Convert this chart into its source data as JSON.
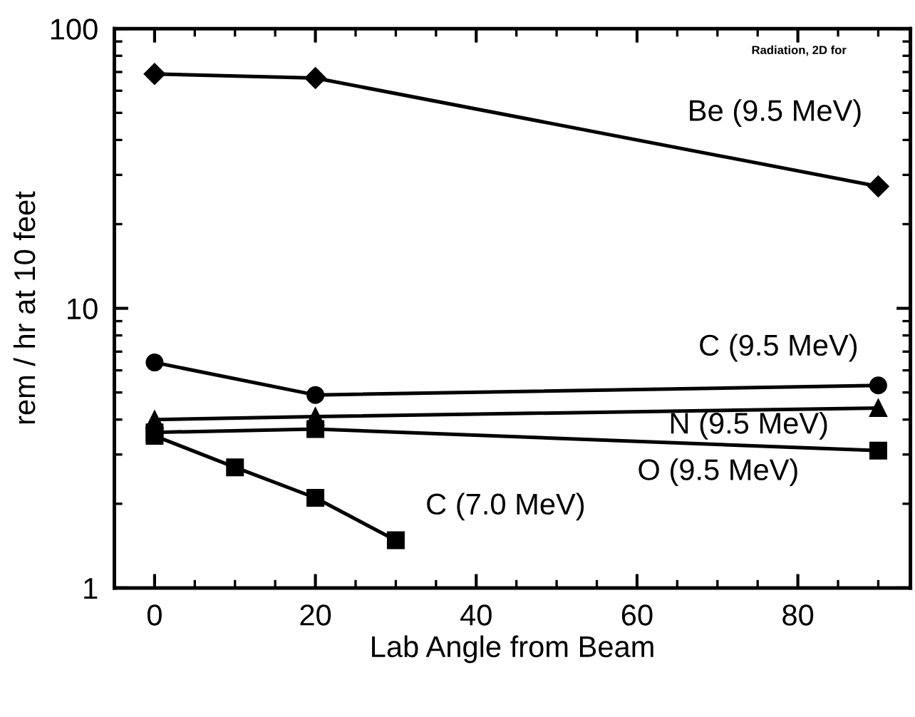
{
  "chart_data": {
    "type": "line",
    "xlabel": "Lab Angle from Beam",
    "ylabel": "rem / hr at 10 feet",
    "annotations": [
      "Radiation, 2D for"
    ],
    "log": "y",
    "xlim": [
      -5,
      94
    ],
    "xticks": [
      0,
      20,
      40,
      60,
      80
    ],
    "ylim": [
      1,
      100
    ],
    "yticks": [
      1,
      10,
      100
    ],
    "grid": false,
    "legend": "right",
    "line_style": "solid",
    "series": [
      {
        "name": "Be (9.5 MeV)",
        "color": "#000000",
        "marker": "diamond",
        "x": [
          0,
          20,
          90
        ],
        "values": [
          68.9,
          66.6,
          27.3
        ]
      },
      {
        "name": "C (9.5 MeV)",
        "color": "#000000",
        "marker": "circle",
        "x": [
          0,
          20,
          90
        ],
        "values": [
          6.4,
          4.9,
          5.3
        ]
      },
      {
        "name": "N (9.5 MeV)",
        "color": "#000000",
        "marker": "triangle",
        "x": [
          0,
          20,
          90
        ],
        "values": [
          4.0,
          4.1,
          4.4
        ]
      },
      {
        "name": "O (9.5 MeV)",
        "color": "#000000",
        "marker": "square",
        "x": [
          0,
          20,
          90
        ],
        "values": [
          3.6,
          3.7,
          3.1
        ]
      },
      {
        "name": "C (7.0 MeV)",
        "color": "#000000",
        "marker": "square",
        "x": [
          0,
          10,
          20,
          30
        ],
        "values": [
          3.5,
          2.7,
          2.1,
          1.48
        ]
      }
    ]
  }
}
